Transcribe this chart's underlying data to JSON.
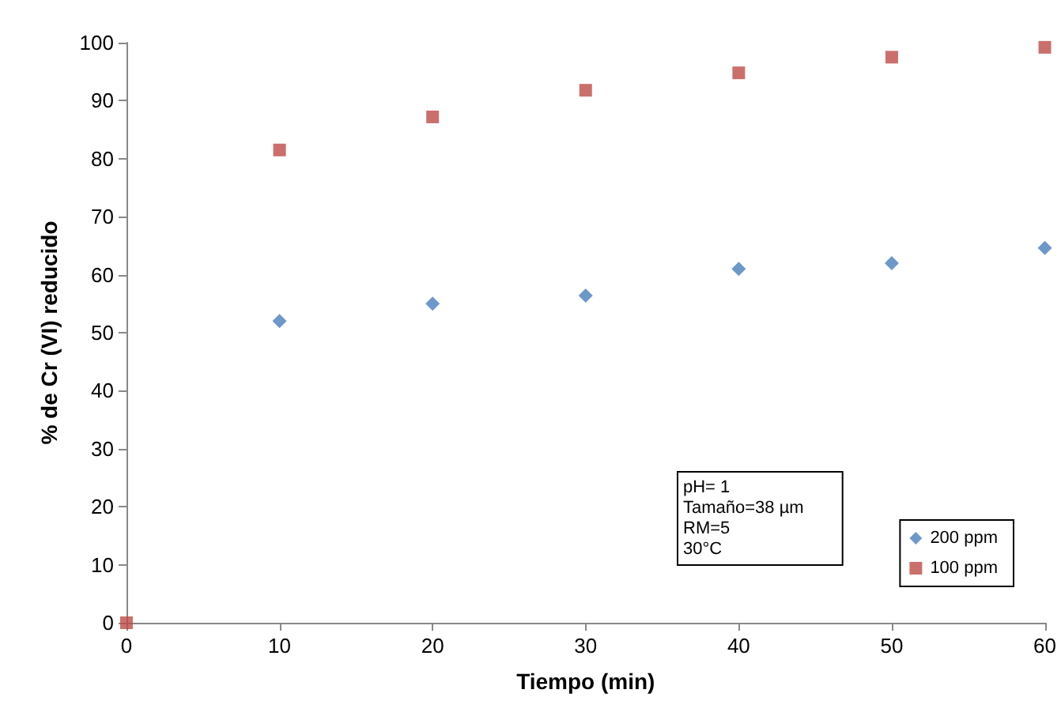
{
  "chart_data": {
    "type": "scatter",
    "xlabel": "Tiempo (min)",
    "ylabel": "% de Cr (VI) reducido",
    "x": [
      0,
      10,
      20,
      30,
      40,
      50,
      60
    ],
    "series": [
      {
        "name": "200 ppm",
        "color": "#4a7ebb",
        "marker": "diamond",
        "values": [
          null,
          52,
          55,
          56.4,
          61,
          62,
          64.6
        ]
      },
      {
        "name": "100 ppm",
        "color": "#be4b48",
        "marker": "square",
        "values": [
          0,
          81.5,
          87.2,
          91.8,
          94.8,
          97.5,
          99.2
        ]
      }
    ],
    "xlim": [
      0,
      60
    ],
    "xticks": [
      0,
      10,
      20,
      30,
      40,
      50,
      60
    ],
    "ylim": [
      0,
      100
    ],
    "yticks": [
      0,
      10,
      20,
      30,
      40,
      50,
      60,
      70,
      80,
      90,
      100
    ],
    "grid": false,
    "legend": "bottom right",
    "annotations": [
      "pH= 1\nTamaño=38 µm\nRM=5\n30°C"
    ]
  }
}
